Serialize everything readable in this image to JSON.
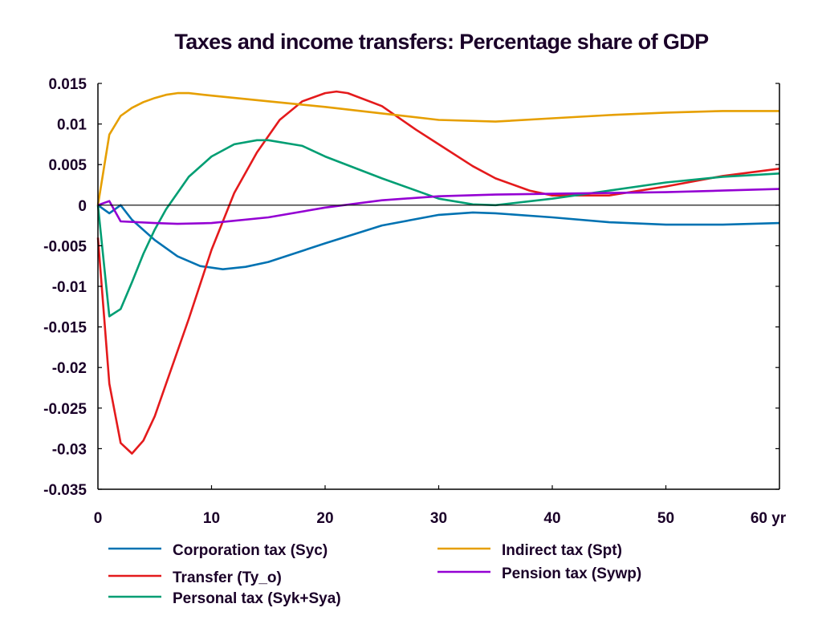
{
  "chart_data": {
    "type": "line",
    "title": "Taxes and income transfers: Percentage share of GDP",
    "xlabel": "",
    "ylabel": "",
    "x_unit_label": "yr",
    "xlim": [
      0,
      60
    ],
    "ylim": [
      -0.035,
      0.015
    ],
    "x_ticks": [
      0,
      10,
      20,
      30,
      40,
      50,
      60
    ],
    "x_tick_labels": [
      "0",
      "10",
      "20",
      "30",
      "40",
      "50",
      "60 yr"
    ],
    "y_ticks": [
      0.015,
      0.01,
      0.005,
      0,
      -0.005,
      -0.01,
      -0.015,
      -0.02,
      -0.025,
      -0.03,
      -0.035
    ],
    "y_tick_labels": [
      "0.015",
      "0.01",
      "0.005",
      "0",
      "-0.005",
      "-0.01",
      "-0.015",
      "-0.02",
      "-0.025",
      "-0.03",
      "-0.035"
    ],
    "grid": false,
    "zero_line": true,
    "legend_position": "bottom",
    "series": [
      {
        "name": "Corporation tax (Syc)",
        "color": "#0072b2",
        "x": [
          0,
          1,
          2,
          3,
          5,
          7,
          9,
          11,
          13,
          15,
          20,
          25,
          30,
          33,
          35,
          40,
          45,
          50,
          55,
          60
        ],
        "values": [
          0,
          -0.001,
          0,
          -0.0018,
          -0.0043,
          -0.0063,
          -0.0075,
          -0.0079,
          -0.0076,
          -0.007,
          -0.0047,
          -0.0025,
          -0.0012,
          -0.0009,
          -0.001,
          -0.0015,
          -0.0021,
          -0.0024,
          -0.0024,
          -0.0022
        ]
      },
      {
        "name": "Transfer (Ty_o)",
        "color": "#e41a1c",
        "x": [
          0,
          1,
          2,
          3,
          4,
          5,
          6,
          8,
          10,
          12,
          14,
          16,
          18,
          20,
          21,
          22,
          25,
          28,
          30,
          33,
          35,
          38,
          40,
          45,
          50,
          55,
          60
        ],
        "values": [
          -0.004,
          -0.022,
          -0.0293,
          -0.0306,
          -0.029,
          -0.026,
          -0.022,
          -0.014,
          -0.0055,
          0.0015,
          0.0065,
          0.0105,
          0.0128,
          0.0138,
          0.014,
          0.0138,
          0.0122,
          0.0093,
          0.0075,
          0.0048,
          0.0033,
          0.0018,
          0.0012,
          0.0012,
          0.0023,
          0.0036,
          0.0045
        ]
      },
      {
        "name": "Personal tax (Syk+Sya)",
        "color": "#009e73",
        "x": [
          0,
          1,
          2,
          3,
          4,
          5,
          6,
          8,
          10,
          12,
          14,
          15,
          18,
          20,
          25,
          30,
          33,
          35,
          40,
          45,
          50,
          55,
          60
        ],
        "values": [
          0,
          -0.0137,
          -0.0128,
          -0.0095,
          -0.006,
          -0.003,
          -0.0005,
          0.0035,
          0.006,
          0.0075,
          0.008,
          0.008,
          0.0073,
          0.006,
          0.0033,
          0.0008,
          0.0001,
          0.0,
          0.0008,
          0.0018,
          0.0028,
          0.0035,
          0.0039
        ]
      },
      {
        "name": "Indirect tax (Spt)",
        "color": "#e69f00",
        "x": [
          0,
          1,
          2,
          3,
          4,
          5,
          6,
          7,
          8,
          10,
          15,
          20,
          25,
          30,
          35,
          40,
          45,
          50,
          55,
          60
        ],
        "values": [
          0,
          0.0087,
          0.011,
          0.012,
          0.0127,
          0.0132,
          0.0136,
          0.0138,
          0.0138,
          0.0135,
          0.0128,
          0.0121,
          0.0113,
          0.0105,
          0.0103,
          0.0107,
          0.0111,
          0.0114,
          0.0116,
          0.0116
        ]
      },
      {
        "name": "Pension tax (Sywp)",
        "color": "#9400d3",
        "x": [
          0,
          1,
          2,
          5,
          7,
          10,
          15,
          20,
          25,
          30,
          35,
          40,
          45,
          50,
          55,
          60
        ],
        "values": [
          0,
          0.0005,
          -0.002,
          -0.0022,
          -0.0023,
          -0.0022,
          -0.0015,
          -0.0003,
          0.0006,
          0.0011,
          0.0013,
          0.0014,
          0.0015,
          0.0016,
          0.0018,
          0.002
        ]
      }
    ]
  }
}
